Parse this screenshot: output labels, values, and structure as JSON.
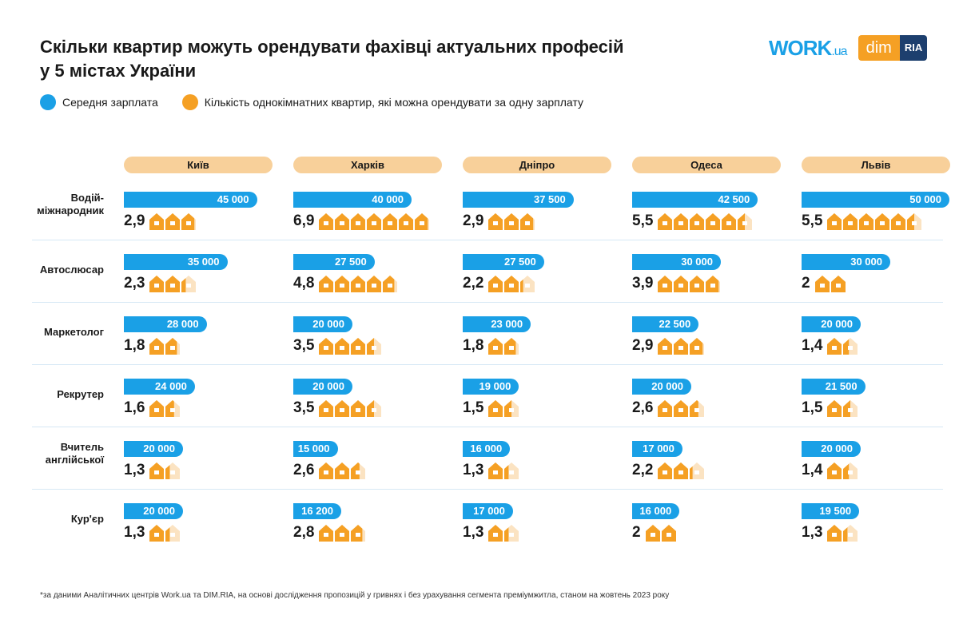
{
  "title_line1": "Скільки квартир можуть орендувати фахівці актуальних професій",
  "title_line2": "у 5 містах України",
  "legend": [
    {
      "label": "Середня зарплата",
      "color": "#1aa0e6"
    },
    {
      "label": "Кількість однокімнатних квартир, які можна орендувати за одну зарплату",
      "color": "#f5a024"
    }
  ],
  "logos": {
    "work": "WORK",
    "work_suffix": ".ua",
    "dim": "dim",
    "ria": "RIA"
  },
  "footnote": "*за даними Аналітичних центрів Work.ua та DIM.RIA, на основі дослідження пропозицій у гривнях і без урахування сегмента преміумжитла, станом на жовтень 2023 року",
  "chart_data": {
    "type": "table",
    "cities": [
      "Київ",
      "Харків",
      "Дніпро",
      "Одеса",
      "Львів"
    ],
    "colors": {
      "salary": "#1aa0e6",
      "apartments": "#f5a024"
    },
    "rows": [
      {
        "profession": "Водій-міжнародник",
        "salary": [
          "45 000",
          "40 000",
          "37 500",
          "42 500",
          "50 000"
        ],
        "apartments": [
          "2,9",
          "6,9",
          "2,9",
          "5,5",
          "5,5"
        ]
      },
      {
        "profession": "Автослюсар",
        "salary": [
          "35 000",
          "27 500",
          "27 500",
          "30 000",
          "30 000"
        ],
        "apartments": [
          "2,3",
          "4,8",
          "2,2",
          "3,9",
          "2"
        ]
      },
      {
        "profession": "Маркетолог",
        "salary": [
          "28 000",
          "20 000",
          "23 000",
          "22 500",
          "20 000"
        ],
        "apartments": [
          "1,8",
          "3,5",
          "1,8",
          "2,9",
          "1,4"
        ]
      },
      {
        "profession": "Рекрутер",
        "salary": [
          "24 000",
          "20 000",
          "19 000",
          "20 000",
          "21 500"
        ],
        "apartments": [
          "1,6",
          "3,5",
          "1,5",
          "2,6",
          "1,5"
        ]
      },
      {
        "profession": "Вчитель англійської",
        "salary": [
          "20 000",
          "15 000",
          "16 000",
          "17 000",
          "20 000"
        ],
        "apartments": [
          "1,3",
          "2,6",
          "1,3",
          "2,2",
          "1,4"
        ]
      },
      {
        "profession": "Кур'єр",
        "salary": [
          "20 000",
          "16 200",
          "17 000",
          "16 000",
          "19 500"
        ],
        "apartments": [
          "1,3",
          "2,8",
          "1,3",
          "2",
          "1,3"
        ]
      }
    ]
  }
}
